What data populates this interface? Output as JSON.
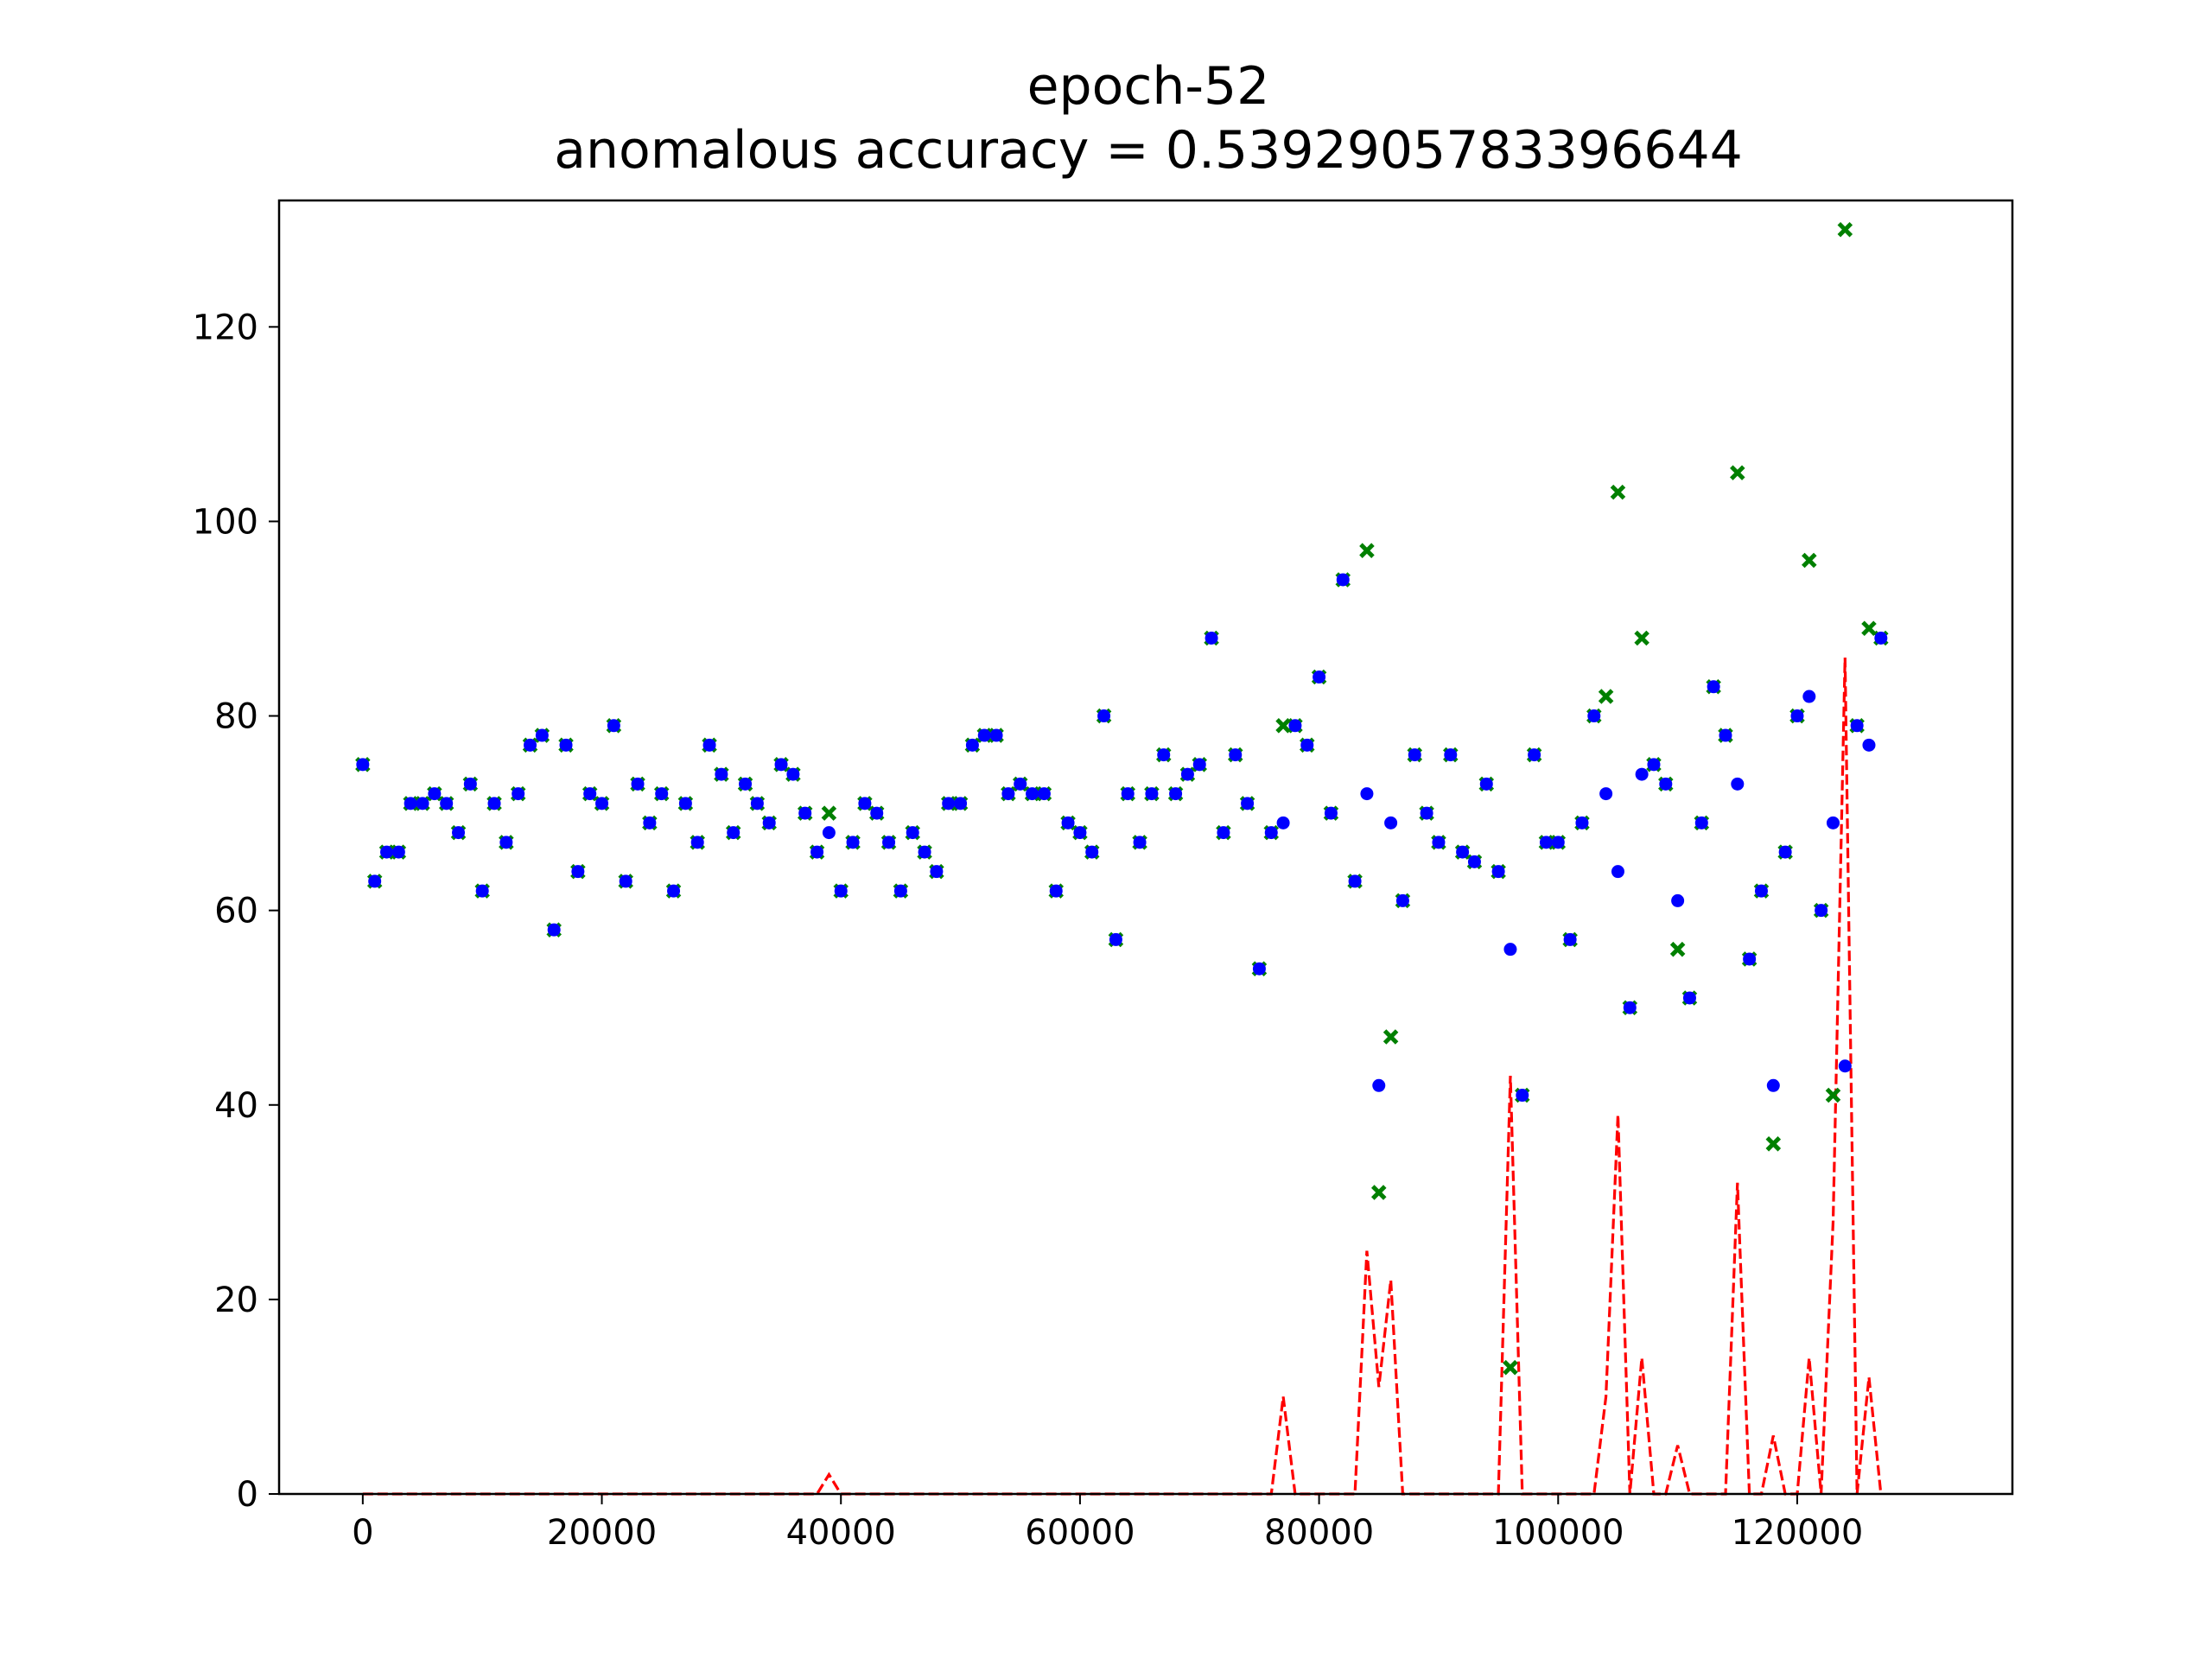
{
  "chart_data": {
    "type": "scatter",
    "title": "epoch-52",
    "subtitle": "anomalous accuracy = 0.5392905783396644",
    "xlabel": "",
    "ylabel": "",
    "xlim": [
      -7000,
      138000
    ],
    "ylim": [
      0,
      133
    ],
    "x_ticks": [
      0,
      20000,
      40000,
      60000,
      80000,
      100000,
      120000
    ],
    "y_ticks": [
      0,
      20,
      40,
      60,
      80,
      100,
      120
    ],
    "grid": false,
    "legend": "none",
    "colors": {
      "actual": "#008000",
      "predicted": "#0000ff",
      "error": "#ff0000"
    },
    "x": [
      0,
      1000,
      2000,
      3000,
      4000,
      5000,
      6000,
      7000,
      8000,
      9000,
      10000,
      11000,
      12000,
      13000,
      14000,
      15000,
      16000,
      17000,
      18000,
      19000,
      20000,
      21000,
      22000,
      23000,
      24000,
      25000,
      26000,
      27000,
      28000,
      29000,
      30000,
      31000,
      32000,
      33000,
      34000,
      35000,
      36000,
      37000,
      38000,
      39000,
      40000,
      41000,
      42000,
      43000,
      44000,
      45000,
      46000,
      47000,
      48000,
      49000,
      50000,
      51000,
      52000,
      53000,
      54000,
      55000,
      56000,
      57000,
      58000,
      59000,
      60000,
      61000,
      62000,
      63000,
      64000,
      65000,
      66000,
      67000,
      68000,
      69000,
      70000,
      71000,
      72000,
      73000,
      74000,
      75000,
      76000,
      77000,
      78000,
      79000,
      80000,
      81000,
      82000,
      83000,
      84000,
      85000,
      86000,
      87000,
      88000,
      89000,
      90000,
      91000,
      92000,
      93000,
      94000,
      95000,
      96000,
      97000,
      98000,
      99000,
      100000,
      101000,
      102000,
      103000,
      104000,
      105000,
      106000,
      107000,
      108000,
      109000,
      110000,
      111000,
      112000,
      113000,
      114000,
      115000,
      116000,
      117000,
      118000,
      119000,
      120000,
      121000,
      122000,
      123000,
      124000,
      125000,
      126000,
      127000,
      128000,
      129000,
      130000,
      131000
    ],
    "series": [
      {
        "marker": "x",
        "values": [
          75,
          63,
          66,
          66,
          71,
          71,
          72,
          71,
          68,
          73,
          62,
          71,
          67,
          72,
          77,
          78,
          58,
          77,
          64,
          72,
          71,
          79,
          63,
          73,
          69,
          72,
          62,
          71,
          67,
          77,
          74,
          68,
          73,
          71,
          69,
          75,
          74,
          70,
          66,
          70,
          62,
          67,
          71,
          70,
          67,
          62,
          68,
          66,
          64,
          71,
          71,
          77,
          78,
          78,
          72,
          73,
          72,
          72,
          62,
          69,
          68,
          66,
          80,
          57,
          72,
          67,
          72,
          76,
          72,
          74,
          75,
          88,
          68,
          76,
          71,
          54,
          68,
          79,
          79,
          77,
          84,
          70,
          94,
          63,
          97,
          31,
          47,
          61,
          76,
          70,
          67,
          76,
          66,
          65,
          73,
          64,
          13,
          41,
          76,
          67,
          67,
          57,
          69,
          80,
          82,
          103,
          50,
          88,
          75,
          73,
          56,
          51,
          69,
          83,
          78,
          105,
          55,
          62,
          36,
          66,
          80,
          96,
          60,
          41,
          130,
          79,
          89,
          88
        ]
      },
      {
        "marker": "dot",
        "values": [
          75,
          63,
          66,
          66,
          71,
          71,
          72,
          71,
          68,
          73,
          62,
          71,
          67,
          72,
          77,
          78,
          58,
          77,
          64,
          72,
          71,
          79,
          63,
          73,
          69,
          72,
          62,
          71,
          67,
          77,
          74,
          68,
          73,
          71,
          69,
          75,
          74,
          70,
          66,
          68,
          62,
          67,
          71,
          70,
          67,
          62,
          68,
          66,
          64,
          71,
          71,
          77,
          78,
          78,
          72,
          73,
          72,
          72,
          62,
          69,
          68,
          66,
          80,
          57,
          72,
          67,
          72,
          76,
          72,
          74,
          75,
          88,
          68,
          76,
          71,
          54,
          68,
          69,
          79,
          77,
          84,
          70,
          94,
          63,
          72,
          42,
          69,
          61,
          76,
          70,
          67,
          76,
          66,
          65,
          73,
          64,
          56,
          41,
          76,
          67,
          67,
          57,
          69,
          80,
          72,
          64,
          50,
          74,
          75,
          73,
          61,
          51,
          69,
          83,
          78,
          73,
          55,
          62,
          42,
          66,
          80,
          82,
          60,
          69,
          44,
          79,
          77,
          88
        ]
      },
      {
        "line": "dashed",
        "values": [
          0,
          0,
          0,
          0,
          0,
          0,
          0,
          0,
          0,
          0,
          0,
          0,
          0,
          0,
          0,
          0,
          0,
          0,
          0,
          0,
          0,
          0,
          0,
          0,
          0,
          0,
          0,
          0,
          0,
          0,
          0,
          0,
          0,
          0,
          0,
          0,
          0,
          0,
          0,
          2,
          0,
          0,
          0,
          0,
          0,
          0,
          0,
          0,
          0,
          0,
          0,
          0,
          0,
          0,
          0,
          0,
          0,
          0,
          0,
          0,
          0,
          0,
          0,
          0,
          0,
          0,
          0,
          0,
          0,
          0,
          0,
          0,
          0,
          0,
          0,
          0,
          0,
          10,
          0,
          0,
          0,
          0,
          0,
          0,
          25,
          11,
          22,
          0,
          0,
          0,
          0,
          0,
          0,
          0,
          0,
          0,
          43,
          0,
          0,
          0,
          0,
          0,
          0,
          0,
          10,
          39,
          0,
          14,
          0,
          0,
          5,
          0,
          0,
          0,
          0,
          32,
          0,
          0,
          6,
          0,
          0,
          14,
          0,
          28,
          86,
          0,
          12,
          0
        ]
      }
    ]
  }
}
